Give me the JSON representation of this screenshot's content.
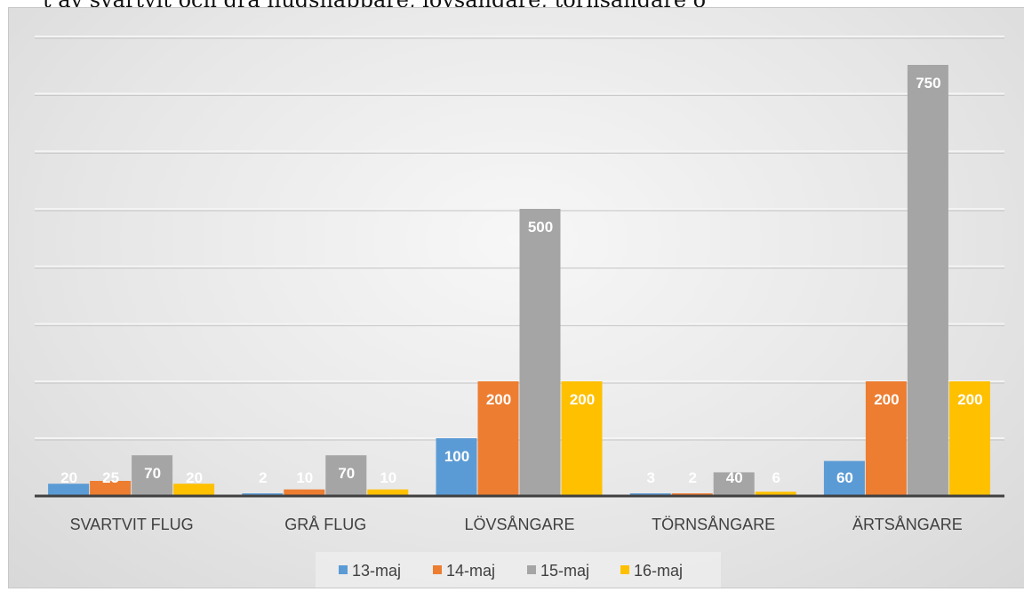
{
  "chart_data": {
    "type": "bar",
    "title": "",
    "partial_title_text": "t av svartvit och grå flugsnappare, lövsångare, törnsångare o",
    "categories": [
      "SVARTVIT FLUG",
      "GRÅ FLUG",
      "LÖVSÅNGARE",
      "TÖRNSÅNGARE",
      "ÄRTSÅNGARE"
    ],
    "series": [
      {
        "name": "13-maj",
        "color": "#5b9bd5",
        "values": [
          20,
          2,
          100,
          3,
          60
        ],
        "labels": [
          "20",
          "2",
          "100",
          "3",
          "60"
        ]
      },
      {
        "name": "14-maj",
        "color": "#ed7d31",
        "values": [
          25,
          10,
          200,
          2,
          200
        ],
        "labels": [
          "25",
          "10",
          "200",
          "2",
          "200"
        ]
      },
      {
        "name": "15-maj",
        "color": "#a5a5a5",
        "values": [
          70,
          70,
          500,
          40,
          750
        ],
        "labels": [
          "70",
          "70",
          "500",
          "40",
          "750"
        ]
      },
      {
        "name": "16-maj",
        "color": "#ffc000",
        "values": [
          20,
          10,
          200,
          6,
          200
        ],
        "labels": [
          "20",
          "10",
          "200",
          "6",
          "200"
        ]
      }
    ],
    "xlabel": "",
    "ylabel": "",
    "ylim": [
      0,
      800
    ],
    "gridlines": [
      100,
      200,
      300,
      400,
      500,
      600,
      700,
      800
    ],
    "scale_note": "nonlinear value axis (no tick labels shown)",
    "grid": true,
    "legend": "bottom"
  }
}
